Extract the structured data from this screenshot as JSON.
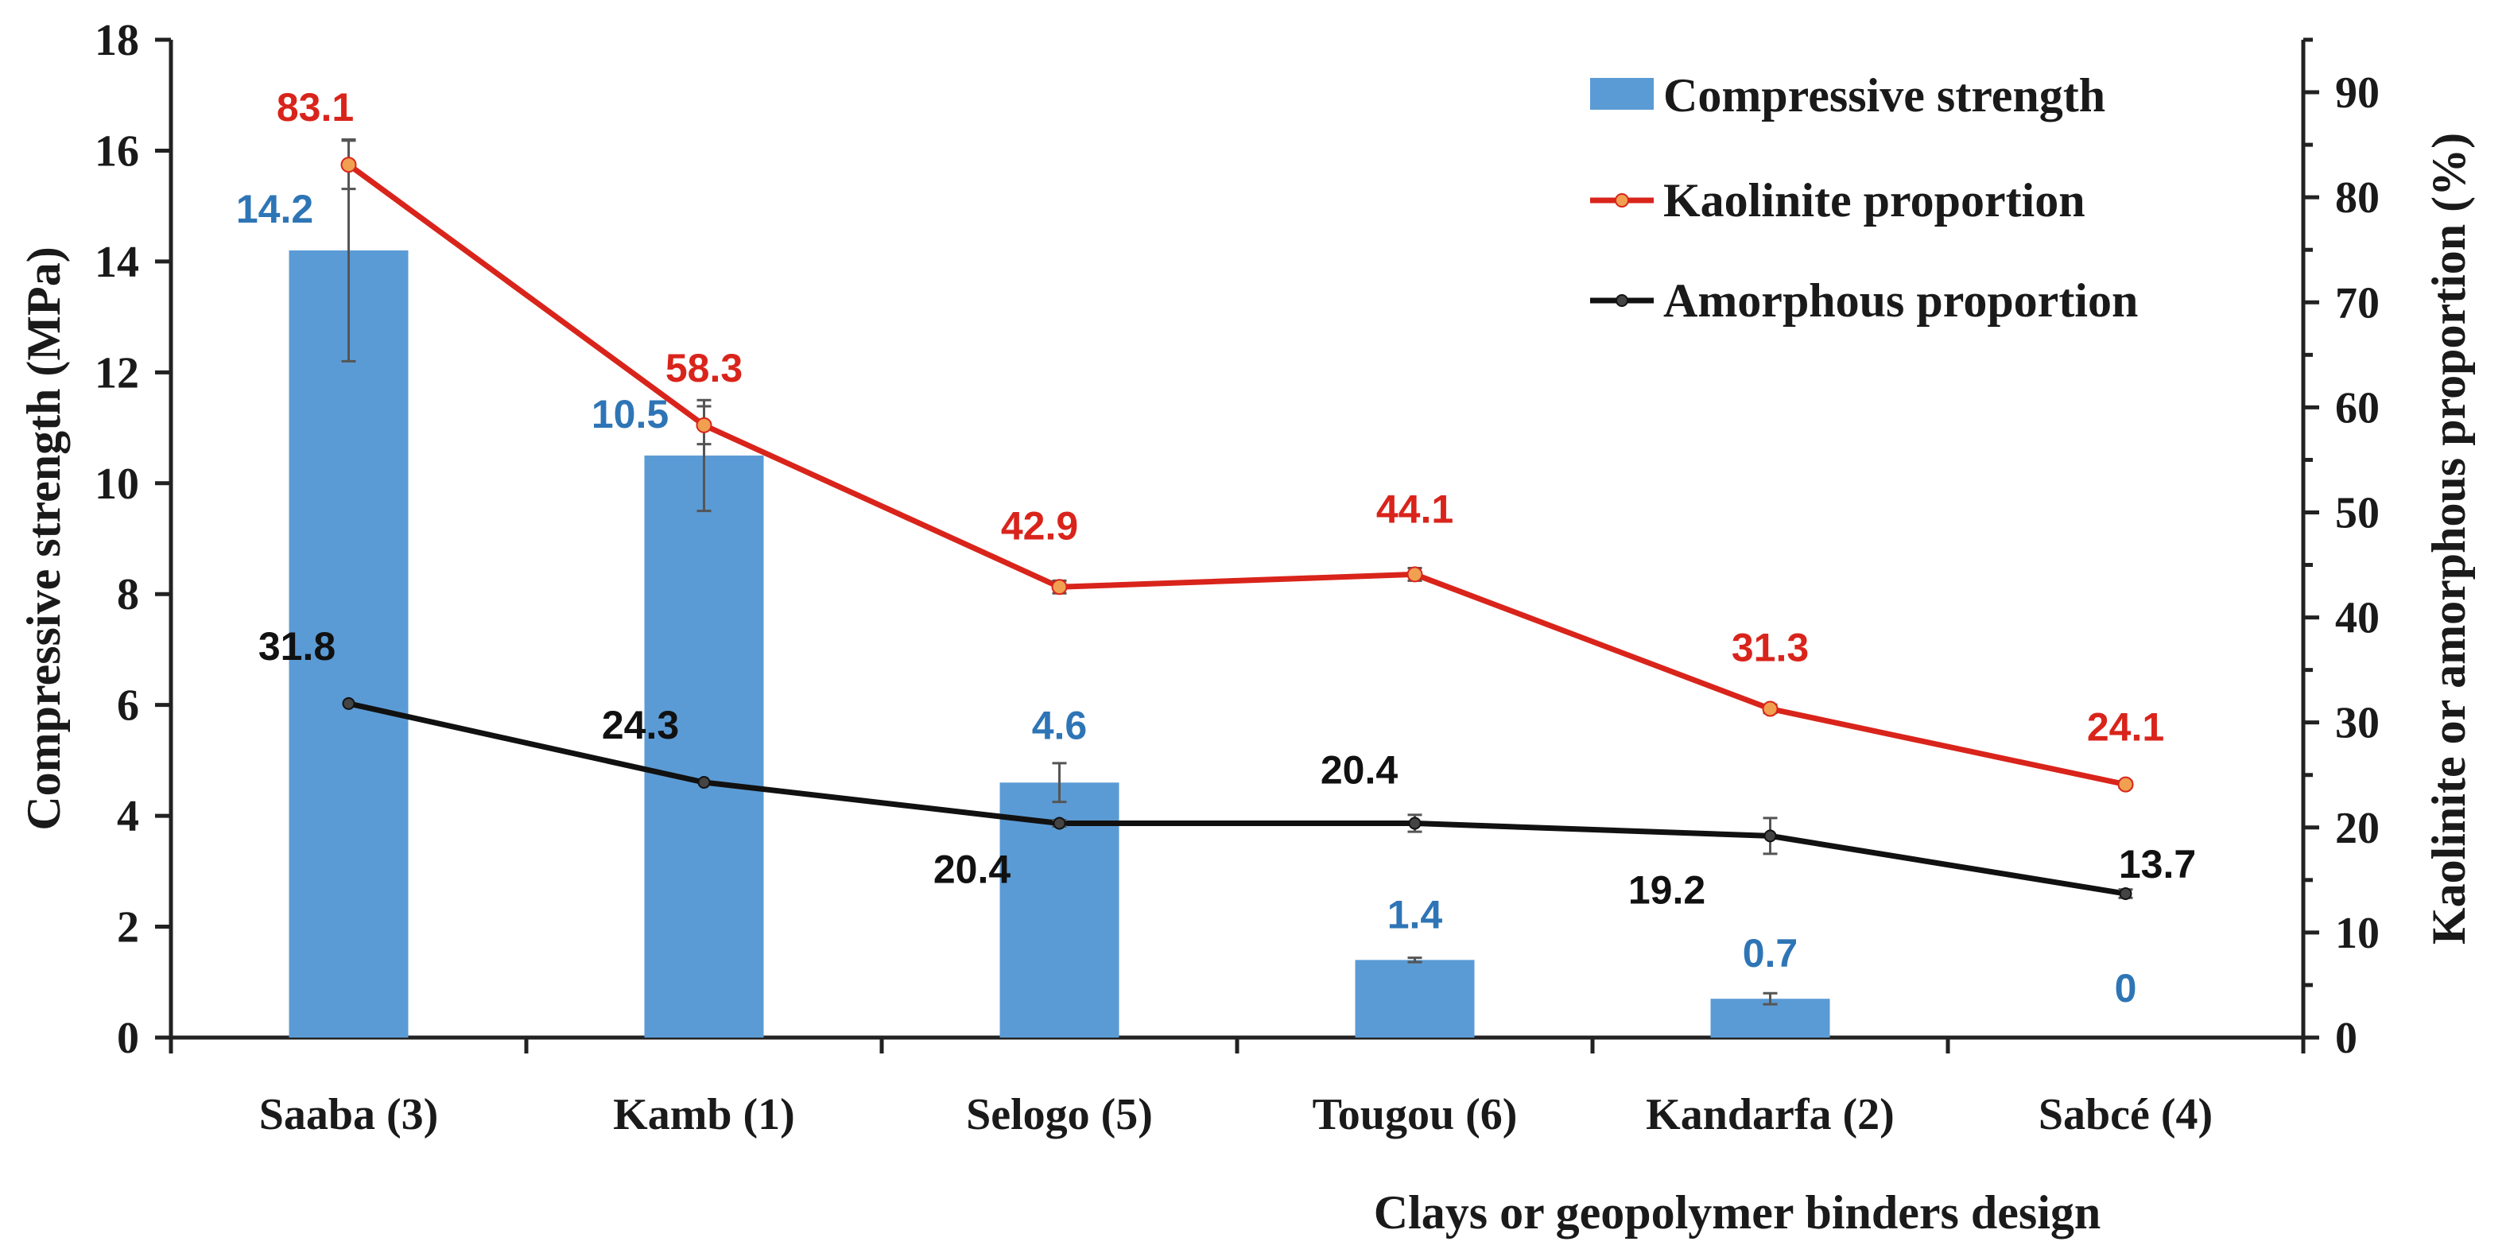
{
  "chart_data": {
    "type": "bar+line",
    "title": "",
    "categories": [
      "Saaba (3)",
      "Kamb (1)",
      "Selogo (5)",
      "Tougou (6)",
      "Kandarfa (2)",
      "Sabcé (4)"
    ],
    "xlabel": "Clays or geopolymer binders design",
    "ylabel": "Compressive strength (MPa)",
    "y2label": "Kaolinite or amorphous proportion (%)",
    "ylim": [
      0,
      18
    ],
    "y2lim": [
      0,
      95
    ],
    "yticks": [
      0,
      2,
      4,
      6,
      8,
      10,
      12,
      14,
      16,
      18
    ],
    "y2ticks": [
      0,
      10,
      20,
      30,
      40,
      50,
      60,
      70,
      80,
      90
    ],
    "legend_position": "top-right",
    "series": [
      {
        "name": "Compressive strength",
        "kind": "bar",
        "axis": "left",
        "color": "#5b9bd5",
        "label_color": "#2e75b6",
        "values": [
          14.2,
          10.5,
          4.6,
          1.4,
          0.7,
          0
        ],
        "errors": [
          2.0,
          1.0,
          0.35,
          0.04,
          0.1,
          0
        ],
        "labels": [
          "14.2",
          "10.5",
          "4.6",
          "1.4",
          "0.7",
          "0"
        ]
      },
      {
        "name": "Kaolinite proportion",
        "kind": "line",
        "axis": "right",
        "color": "#d9241b",
        "marker_color": "#f0a050",
        "label_color": "#d9241b",
        "values": [
          83.1,
          58.3,
          42.9,
          44.1,
          31.3,
          24.1
        ],
        "errors": [
          2.3,
          1.8,
          0.6,
          0.6,
          0.4,
          0.3
        ],
        "labels": [
          "83.1",
          "58.3",
          "42.9",
          "44.1",
          "31.3",
          "24.1"
        ]
      },
      {
        "name": "Amorphous proportion",
        "kind": "line",
        "axis": "right",
        "color": "#111111",
        "marker_color": "#444444",
        "label_color": "#111111",
        "values": [
          31.8,
          24.3,
          20.4,
          20.4,
          19.2,
          13.7
        ],
        "errors": [
          0.2,
          0.2,
          0.3,
          0.8,
          1.7,
          0.4
        ],
        "labels": [
          "31.8",
          "24.3",
          "20.4",
          "20.4",
          "19.2",
          "13.7"
        ]
      }
    ]
  }
}
